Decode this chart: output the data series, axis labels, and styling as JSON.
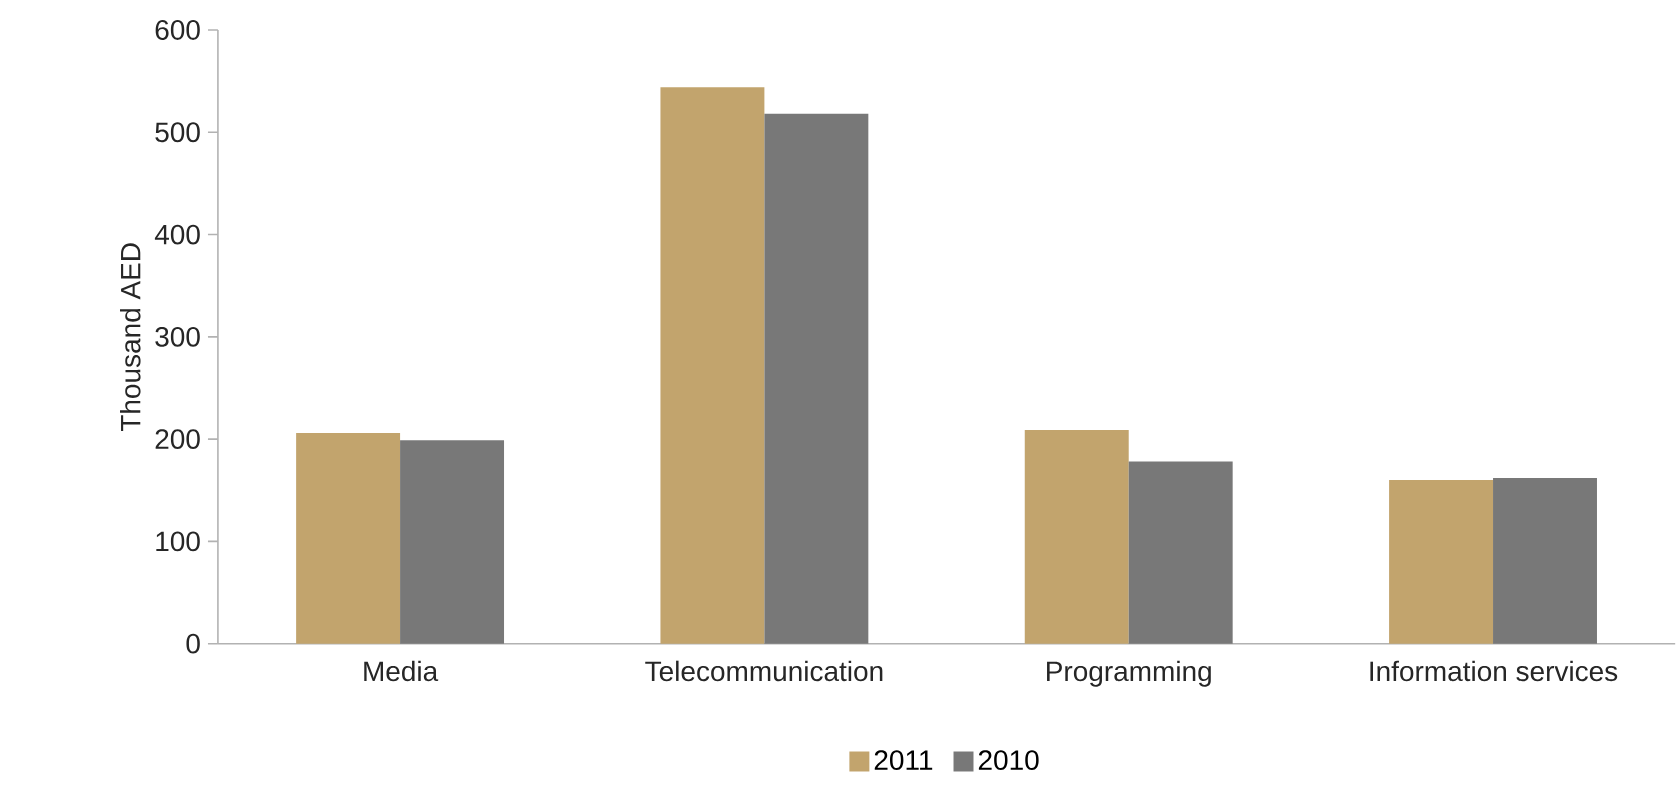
{
  "chart_data": {
    "type": "bar",
    "ylabel": "Thousand AED",
    "categories": [
      "Media",
      "Telecommunication",
      "Programming",
      "Information services"
    ],
    "series": [
      {
        "name": "2011",
        "color": "#c2a46d",
        "values": [
          206,
          544,
          209,
          160
        ]
      },
      {
        "name": "2010",
        "color": "#787878",
        "values": [
          199,
          518,
          178,
          162
        ]
      }
    ],
    "ylim": [
      0,
      600
    ],
    "yticks": [
      0,
      100,
      200,
      300,
      400,
      500,
      600
    ],
    "legend": "bottom"
  }
}
